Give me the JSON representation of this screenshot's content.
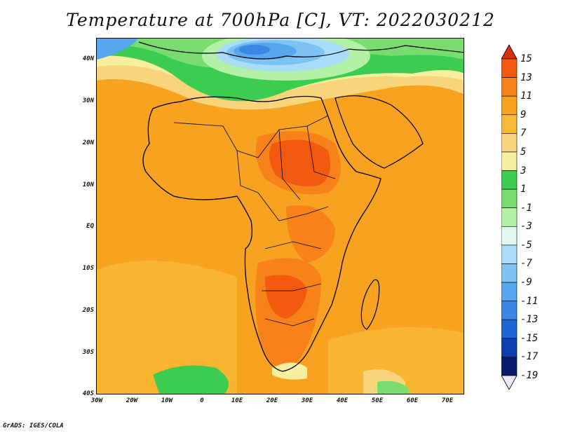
{
  "title": "Temperature at 700hPa [C], VT: 2022030212",
  "footer": "GrADS: IGES/COLA",
  "lat_labels": [
    "40N",
    "30N",
    "20N",
    "10N",
    "EQ",
    "10S",
    "20S",
    "30S",
    "40S"
  ],
  "lon_labels": [
    "30W",
    "20W",
    "10W",
    "0",
    "10E",
    "20E",
    "30E",
    "40E",
    "50E",
    "60E",
    "70E"
  ],
  "colorbar": {
    "labels": [
      "15",
      "13",
      "11",
      "9",
      "7",
      "5",
      "3",
      "1",
      "-1",
      "-3",
      "-5",
      "-7",
      "-9",
      "-11",
      "-13",
      "-15",
      "-17",
      "-19"
    ],
    "colors": [
      "#d9300a",
      "#f25a10",
      "#f7821a",
      "#f7a220",
      "#f7b93a",
      "#f8d57a",
      "#f8eea0",
      "#3ccc4f",
      "#7adc6f",
      "#b4f0a6",
      "#e0f8f0",
      "#a9dcf7",
      "#7ec3f4",
      "#57a6ee",
      "#3a86e4",
      "#1e66d8",
      "#0b3fb2",
      "#071a6e",
      "#e8e8f8"
    ]
  }
}
